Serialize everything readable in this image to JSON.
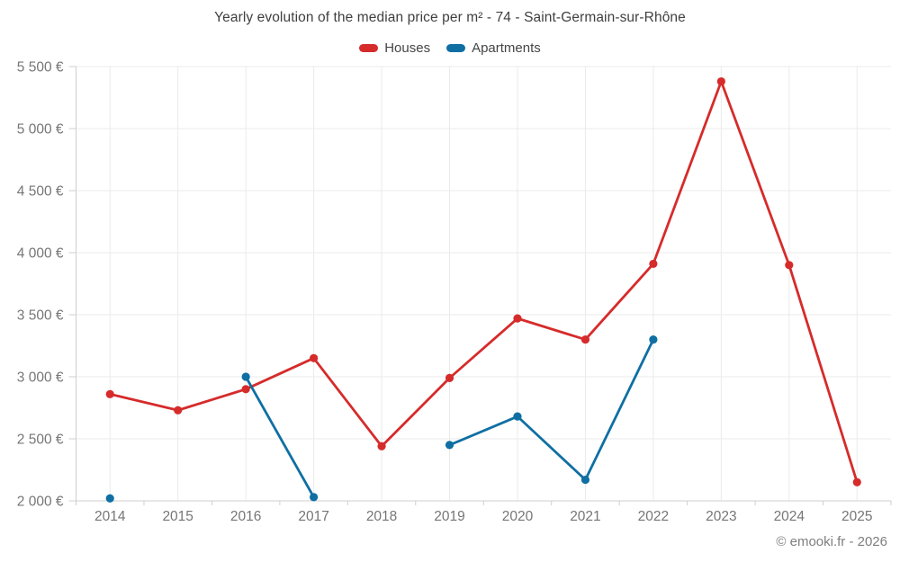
{
  "chart_data": {
    "type": "line",
    "title": "Yearly evolution of the median price per m² - 74 - Saint-Germain-sur-Rhône",
    "categories": [
      "2014",
      "2015",
      "2016",
      "2017",
      "2018",
      "2019",
      "2020",
      "2021",
      "2022",
      "2023",
      "2024",
      "2025"
    ],
    "series": [
      {
        "name": "Houses",
        "color": "#d62b2b",
        "values": [
          2860,
          2730,
          2900,
          3150,
          2440,
          2990,
          3470,
          3300,
          3910,
          5380,
          3900,
          2150
        ]
      },
      {
        "name": "Apartments",
        "color": "#0f6fa3",
        "values": [
          2020,
          null,
          3000,
          2030,
          null,
          2450,
          2680,
          2170,
          3300,
          null,
          null,
          null
        ]
      }
    ],
    "ylim": [
      2000,
      5500
    ],
    "ytick_step": 500,
    "ytick_labels": [
      "2 000 €",
      "2 500 €",
      "3 000 €",
      "3 500 €",
      "4 000 €",
      "4 500 €",
      "5 000 €",
      "5 500 €"
    ],
    "grid": true,
    "legend_position": "top",
    "xlabel": "",
    "ylabel": ""
  },
  "footer": {
    "credit": "© emooki.fr - 2026"
  },
  "colors": {
    "grid_line": "#ebebeb",
    "axis_line": "#cfcfcf",
    "tick_label": "#767676",
    "title_text": "#3f3f3f",
    "legend_text": "#454545",
    "footer_text": "#7f7f7f"
  }
}
